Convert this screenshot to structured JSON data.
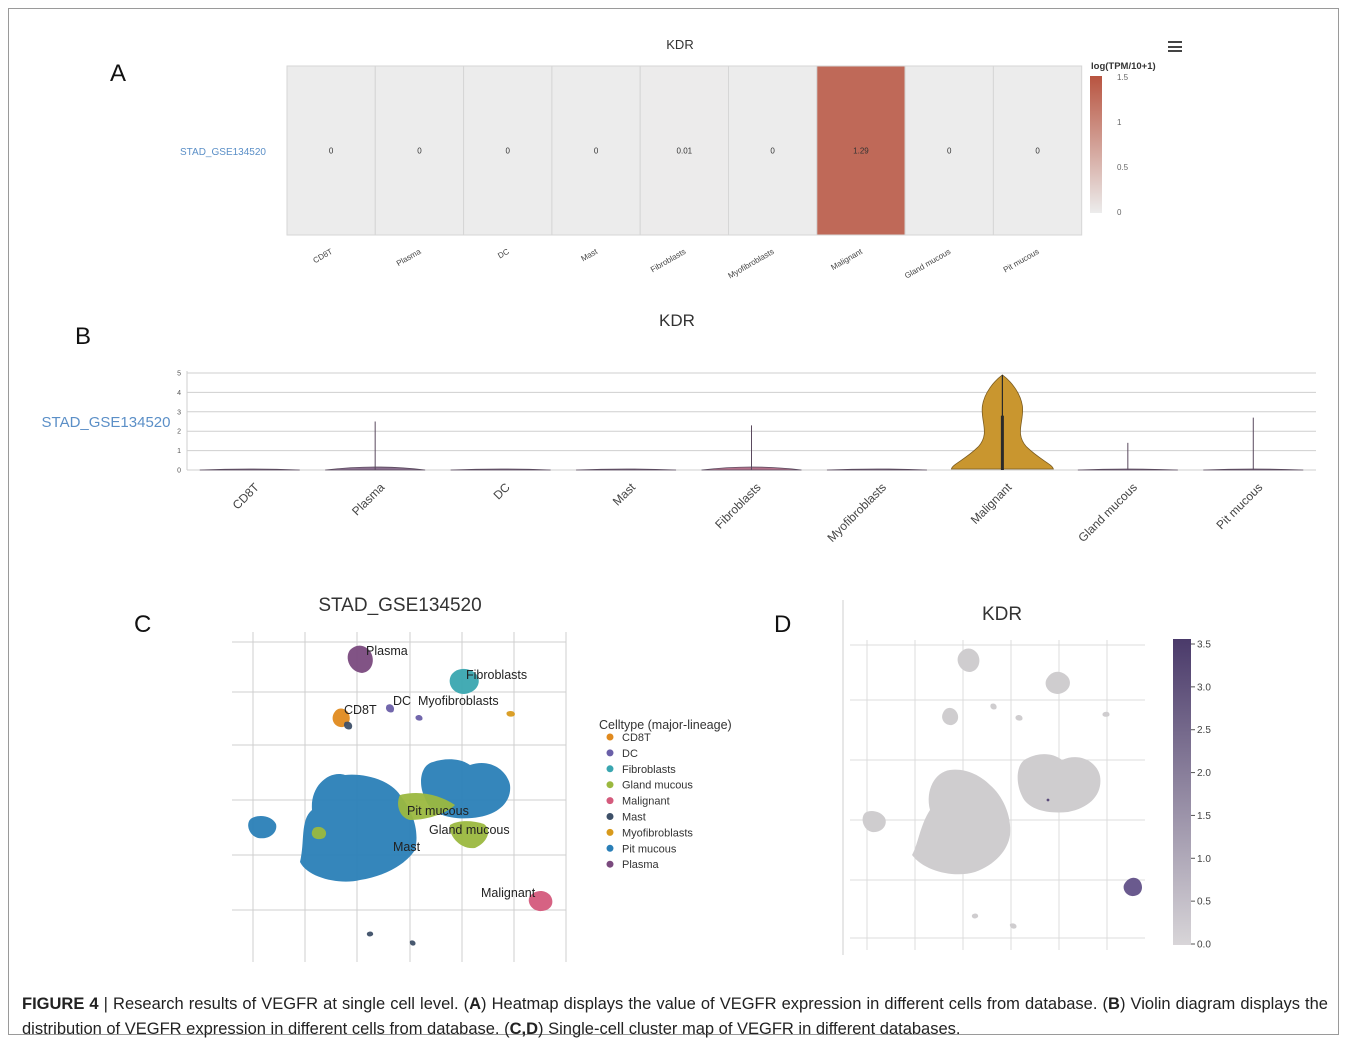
{
  "figure": {
    "caption": {
      "prefix": "FIGURE 4",
      "separator": "|",
      "text_1": "Research results of VEGFR at single cell level. (",
      "a": "A",
      "text_2": ") Heatmap displays the value of VEGFR expression in different cells from database. (",
      "b": "B",
      "text_3": ") Violin diagram displays the distribution of VEGFR expression in different cells from database. (",
      "cd": "C,D",
      "text_4": ") Single-cell cluster map of VEGFR in different databases."
    },
    "panel_letters": [
      "A",
      "B",
      "C",
      "D"
    ]
  },
  "colors": {
    "heat_high": "#b85440",
    "heat_low": "#ececec",
    "violin": "#c9962f",
    "link_blue": "#5b8fc7"
  },
  "chart_data": [
    {
      "panel": "A",
      "type": "heatmap",
      "title": "KDR",
      "row_label": "STAD_GSE134520",
      "categories": [
        "CD8T",
        "Plasma",
        "DC",
        "Mast",
        "Fibroblasts",
        "Myofibroblasts",
        "Malignant",
        "Gland mucous",
        "Pit mucous"
      ],
      "values": [
        0,
        0,
        0,
        0,
        0.01,
        0,
        1.29,
        0,
        0
      ],
      "value_labels": [
        "0",
        "0",
        "0",
        "0",
        "0.01",
        "0",
        "1.29",
        "0",
        "0"
      ],
      "colorbar": {
        "title": "log(TPM/10+1)",
        "ticks": [
          "1.5",
          "1",
          "0.5",
          "0"
        ],
        "range": [
          0,
          1.5
        ]
      }
    },
    {
      "panel": "B",
      "type": "violin",
      "title": "KDR",
      "ylabel": "STAD_GSE134520",
      "ylim": [
        0,
        5
      ],
      "yticks": [
        "0",
        "1",
        "2",
        "3",
        "4",
        "5"
      ],
      "categories": [
        "CD8T",
        "Plasma",
        "DC",
        "Mast",
        "Fibroblasts",
        "Myofibroblasts",
        "Malignant",
        "Gland mucous",
        "Pit mucous"
      ],
      "max": [
        0,
        2.5,
        0,
        0,
        2.3,
        0,
        4.9,
        1.4,
        2.7
      ],
      "upper_box": [
        0,
        0.1,
        0,
        0,
        0.1,
        0,
        2.8,
        0.05,
        0.05
      ]
    },
    {
      "panel": "C",
      "type": "scatter",
      "title": "STAD_GSE134520",
      "legend_title": "Celltype (major-lineage)",
      "legend": [
        {
          "name": "CD8T",
          "color": "#e08a1e"
        },
        {
          "name": "DC",
          "color": "#6a5fa8"
        },
        {
          "name": "Fibroblasts",
          "color": "#3aa6b0"
        },
        {
          "name": "Gland mucous",
          "color": "#9bb83f"
        },
        {
          "name": "Malignant",
          "color": "#d45a7c"
        },
        {
          "name": "Mast",
          "color": "#3e5068"
        },
        {
          "name": "Myofibroblasts",
          "color": "#d89a1c"
        },
        {
          "name": "Pit mucous",
          "color": "#2a7fb7"
        },
        {
          "name": "Plasma",
          "color": "#7a4a7e"
        }
      ],
      "cluster_labels": [
        "Plasma",
        "Fibroblasts",
        "CD8T",
        "DC",
        "Myofibroblasts",
        "Pit mucous",
        "Gland mucous",
        "Mast",
        "Malignant"
      ]
    },
    {
      "panel": "D",
      "type": "scatter",
      "title": "KDR",
      "colorbar": {
        "ticks": [
          "3.5",
          "3.0",
          "2.5",
          "2.0",
          "1.5",
          "1.0",
          "0.5",
          "0.0"
        ],
        "range": [
          0,
          3.5
        ]
      }
    }
  ]
}
